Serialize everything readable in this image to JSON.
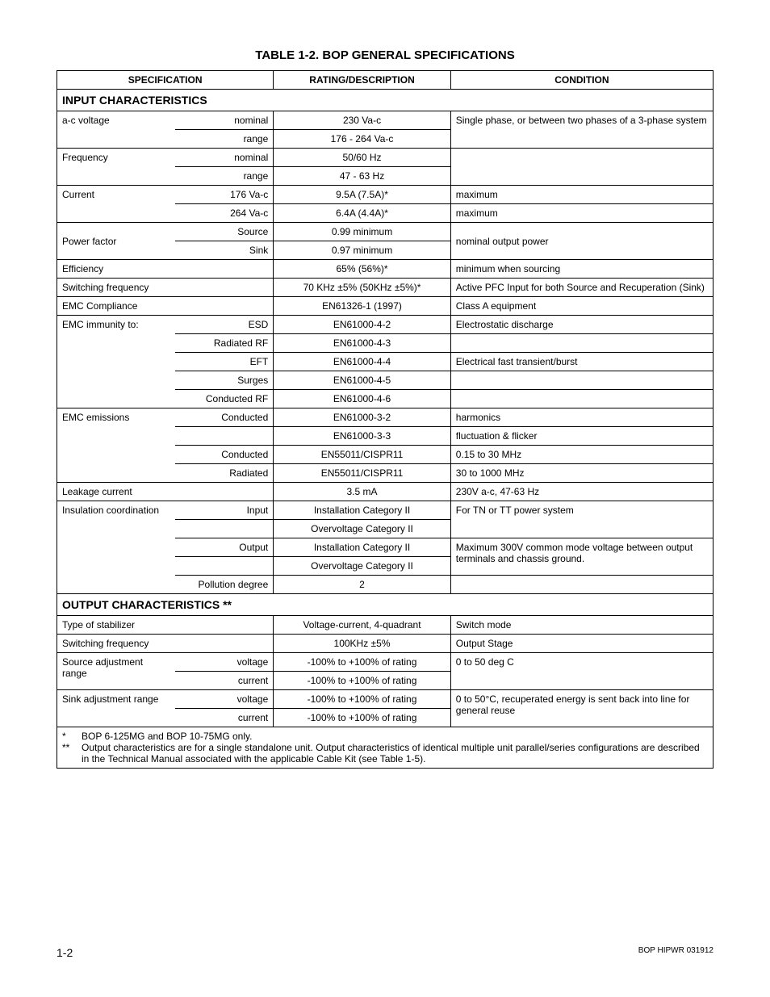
{
  "title": "TABLE 1-2.  BOP GENERAL SPECIFICATIONS",
  "headers": {
    "spec": "SPECIFICATION",
    "rating": "RATING/DESCRIPTION",
    "condition": "CONDITION"
  },
  "sections": {
    "input": "INPUT CHARACTERISTICS",
    "output": "OUTPUT CHARACTERISTICS **"
  },
  "rows": {
    "ac_voltage": {
      "label": "a-c voltage",
      "sub_nominal": "nominal",
      "val_nominal": "230 Va-c",
      "sub_range": "range",
      "val_range": "176 - 264 Va-c",
      "cond": "Single phase, or between two phases of a 3-phase system"
    },
    "frequency": {
      "label": "Frequency",
      "sub_nominal": "nominal",
      "val_nominal": "50/60 Hz",
      "sub_range": "range",
      "val_range": "47 - 63 Hz"
    },
    "current": {
      "label": "Current",
      "sub1": "176 Va-c",
      "val1": "9.5A (7.5A)*",
      "cond1": "maximum",
      "sub2": "264 Va-c",
      "val2": "6.4A (4.4A)*",
      "cond2": "maximum"
    },
    "power_factor": {
      "label": "Power factor",
      "sub1": "Source",
      "val1": "0.99 minimum",
      "sub2": "Sink",
      "val2": "0.97 minimum",
      "cond": "nominal output power"
    },
    "efficiency": {
      "label": "Efficiency",
      "val": "65% (56%)*",
      "cond": "minimum when sourcing"
    },
    "sw_freq_in": {
      "label": "Switching frequency",
      "val": "70 KHz ±5% (50KHz ±5%)*",
      "cond": "Active PFC Input for both Source and Recuperation (Sink)"
    },
    "emc_comp": {
      "label": "EMC Compliance",
      "val": "EN61326-1 (1997)",
      "cond": "Class A equipment"
    },
    "emc_imm": {
      "label": "EMC immunity to:",
      "s1": "ESD",
      "v1": "EN61000-4-2",
      "c1": "Electrostatic discharge",
      "s2": "Radiated RF",
      "v2": "EN61000-4-3",
      "s3": "EFT",
      "v3": "EN61000-4-4",
      "c3": "Electrical fast transient/burst",
      "s4": "Surges",
      "v4": "EN61000-4-5",
      "s5": "Conducted RF",
      "v5": "EN61000-4-6"
    },
    "emc_emis": {
      "label": "EMC emissions",
      "s1": "Conducted",
      "v1": "EN61000-3-2",
      "c1": "harmonics",
      "v2": "EN61000-3-3",
      "c2": "fluctuation & flicker",
      "s3": "Conducted",
      "v3": "EN55011/CISPR11",
      "c3": "0.15 to 30 MHz",
      "s4": "Radiated",
      "v4": "EN55011/CISPR11",
      "c4": "30 to 1000 MHz"
    },
    "leakage": {
      "label": "Leakage current",
      "val": "3.5 mA",
      "cond": "230V a-c, 47-63 Hz"
    },
    "insulation": {
      "label": "Insulation coordination",
      "s1": "Input",
      "v1": "Installation Category II",
      "c1": "For TN or TT power system",
      "v2": "Overvoltage Category II",
      "s3": "Output",
      "v3": "Installation Category II",
      "c3": "Maximum 300V common mode voltage between output terminals and chassis ground.",
      "v4": "Overvoltage Category II",
      "s5": "Pollution degree",
      "v5": "2"
    },
    "stabilizer": {
      "label": "Type of stabilizer",
      "val": "Voltage-current, 4-quadrant",
      "cond": "Switch mode"
    },
    "sw_freq_out": {
      "label": "Switching frequency",
      "val": "100KHz ±5%",
      "cond": "Output Stage"
    },
    "source_adj": {
      "label": "Source adjustment range",
      "s1": "voltage",
      "v1": "-100% to +100% of rating",
      "cond": "0 to 50 deg C",
      "s2": "current",
      "v2": "-100% to +100% of rating"
    },
    "sink_adj": {
      "label": "Sink adjustment range",
      "s1": "voltage",
      "v1": "-100% to +100% of rating",
      "cond": "0 to 50°C, recuperated energy is sent back into line for general reuse",
      "s2": "current",
      "v2": "-100% to +100% of rating"
    }
  },
  "footnotes": {
    "f1_star": "*",
    "f1": "BOP 6-125MG and BOP 10-75MG only.",
    "f2_star": "**",
    "f2": "Output characteristics are for a single standalone unit. Output characteristics of identical multiple unit parallel/series configurations are described in the Technical Manual associated with the applicable Cable Kit (see Table 1-5)."
  },
  "footer": {
    "left": "1-2",
    "right": "BOP HIPWR 031912"
  }
}
